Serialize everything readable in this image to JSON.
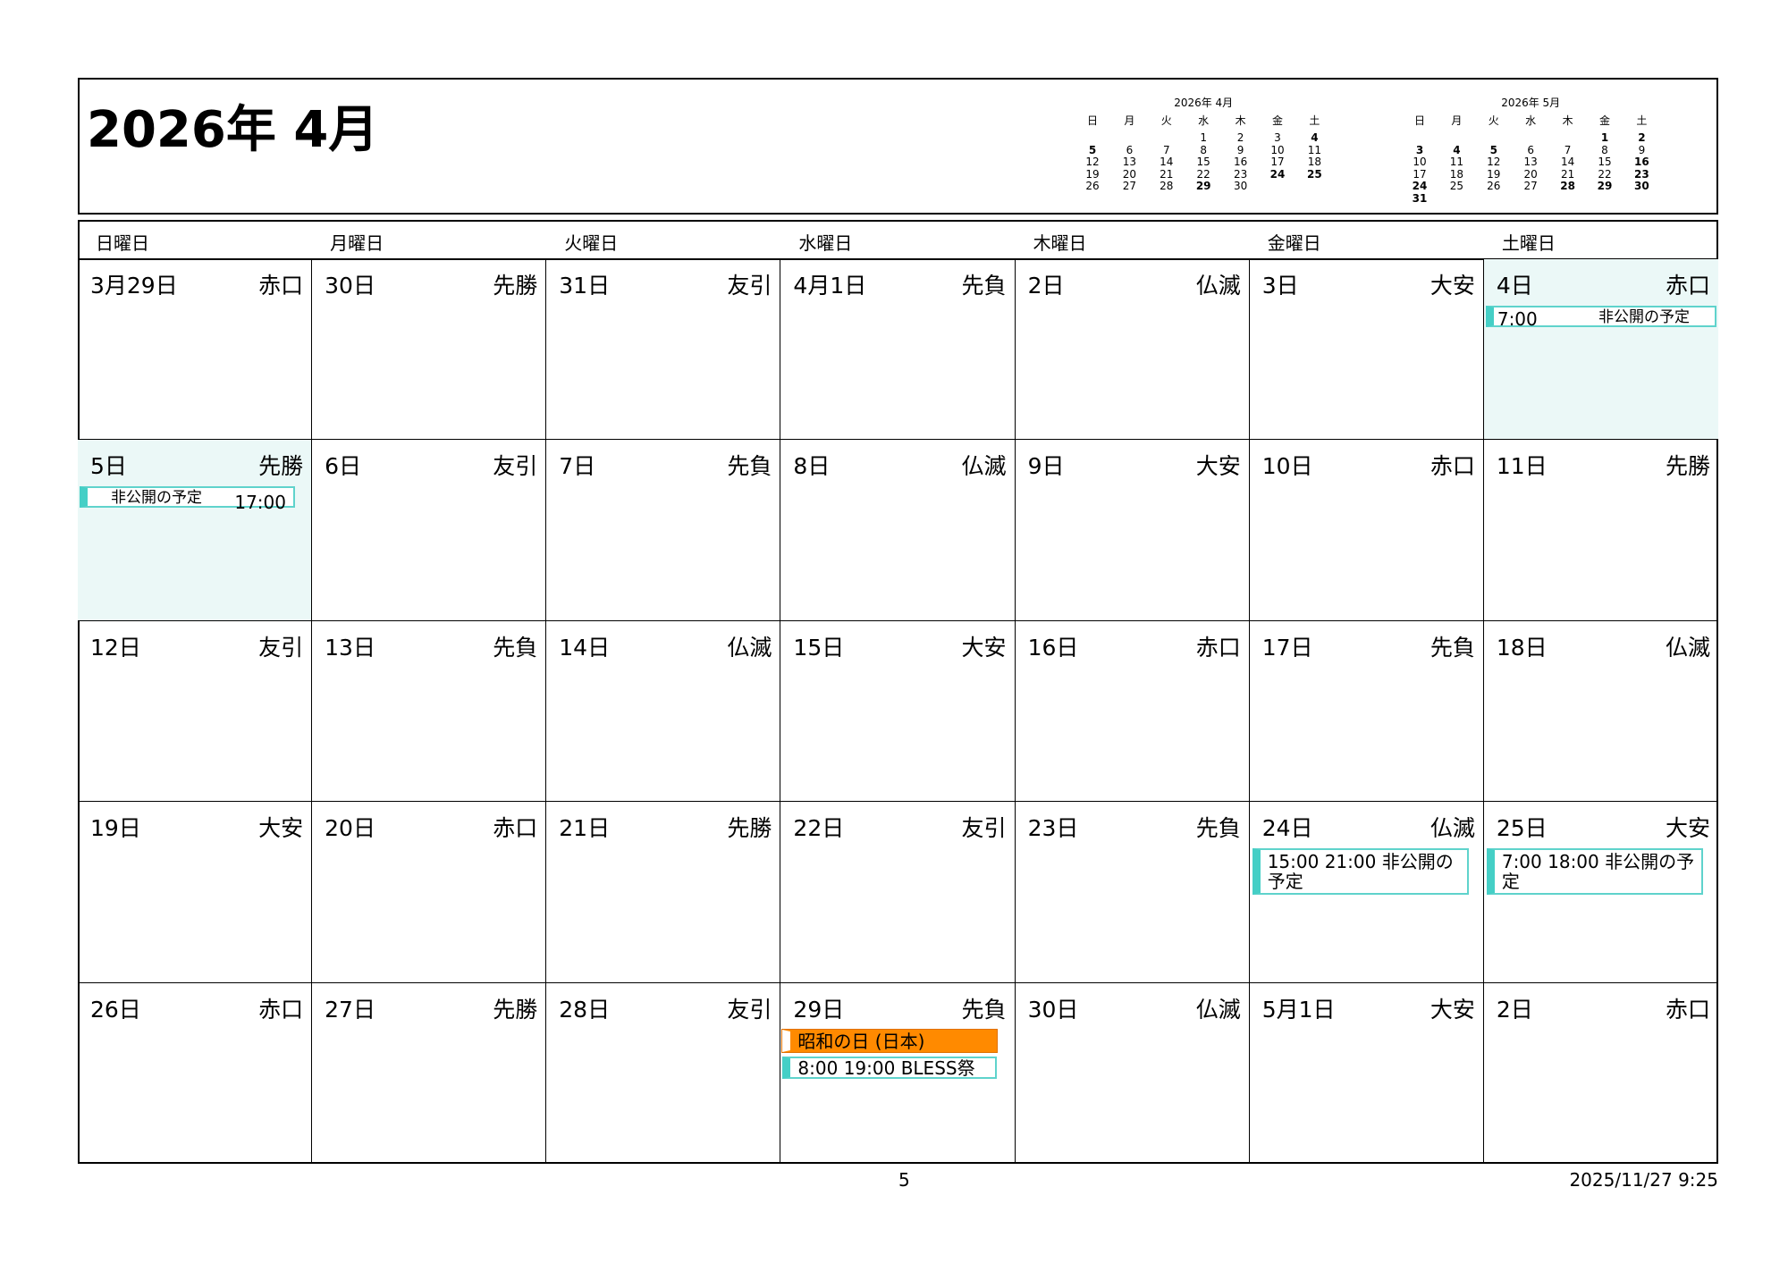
{
  "header": {
    "title": "2026年 4月",
    "mini_calendars": [
      {
        "title": "2026年 4月",
        "weekdays": [
          "日",
          "月",
          "火",
          "水",
          "木",
          "金",
          "土"
        ],
        "weeks": [
          [
            null,
            null,
            null,
            1,
            2,
            3,
            4
          ],
          [
            5,
            6,
            7,
            8,
            9,
            10,
            11
          ],
          [
            12,
            13,
            14,
            15,
            16,
            17,
            18
          ],
          [
            19,
            20,
            21,
            22,
            23,
            24,
            25
          ],
          [
            26,
            27,
            28,
            29,
            30
          ]
        ],
        "bold": [
          4,
          5,
          24,
          25,
          29
        ]
      },
      {
        "title": "2026年 5月",
        "weekdays": [
          "日",
          "月",
          "火",
          "水",
          "木",
          "金",
          "土"
        ],
        "weeks": [
          [
            null,
            null,
            null,
            null,
            null,
            1,
            2
          ],
          [
            3,
            4,
            5,
            6,
            7,
            8,
            9
          ],
          [
            10,
            11,
            12,
            13,
            14,
            15,
            16
          ],
          [
            17,
            18,
            19,
            20,
            21,
            22,
            23
          ],
          [
            24,
            25,
            26,
            27,
            28,
            29,
            30
          ],
          [
            31
          ]
        ],
        "bold": [
          1,
          2,
          3,
          4,
          5,
          16,
          23,
          24,
          28,
          29,
          30,
          31
        ]
      }
    ]
  },
  "weekdays": [
    "日曜日",
    "月曜日",
    "火曜日",
    "水曜日",
    "木曜日",
    "金曜日",
    "土曜日"
  ],
  "weeks": [
    [
      {
        "date": "3月29日",
        "rokuyo": "赤口"
      },
      {
        "date": "30日",
        "rokuyo": "先勝"
      },
      {
        "date": "31日",
        "rokuyo": "友引"
      },
      {
        "date": "4月1日",
        "rokuyo": "先負"
      },
      {
        "date": "2日",
        "rokuyo": "仏滅"
      },
      {
        "date": "3日",
        "rokuyo": "大安"
      },
      {
        "date": "4日",
        "rokuyo": "赤口",
        "highlight": true,
        "events": [
          {
            "kind": "multi-start",
            "time": "7:00",
            "title": "非公開の予定"
          }
        ]
      }
    ],
    [
      {
        "date": "5日",
        "rokuyo": "先勝",
        "highlight": true,
        "events": [
          {
            "kind": "multi-end",
            "title": "非公開の予定",
            "time": "17:00"
          }
        ]
      },
      {
        "date": "6日",
        "rokuyo": "友引"
      },
      {
        "date": "7日",
        "rokuyo": "先負"
      },
      {
        "date": "8日",
        "rokuyo": "仏滅"
      },
      {
        "date": "9日",
        "rokuyo": "大安"
      },
      {
        "date": "10日",
        "rokuyo": "赤口"
      },
      {
        "date": "11日",
        "rokuyo": "先勝"
      }
    ],
    [
      {
        "date": "12日",
        "rokuyo": "友引"
      },
      {
        "date": "13日",
        "rokuyo": "先負"
      },
      {
        "date": "14日",
        "rokuyo": "仏滅"
      },
      {
        "date": "15日",
        "rokuyo": "大安"
      },
      {
        "date": "16日",
        "rokuyo": "赤口"
      },
      {
        "date": "17日",
        "rokuyo": "先負"
      },
      {
        "date": "18日",
        "rokuyo": "仏滅"
      }
    ],
    [
      {
        "date": "19日",
        "rokuyo": "大安"
      },
      {
        "date": "20日",
        "rokuyo": "赤口"
      },
      {
        "date": "21日",
        "rokuyo": "先勝"
      },
      {
        "date": "22日",
        "rokuyo": "友引"
      },
      {
        "date": "23日",
        "rokuyo": "先負"
      },
      {
        "date": "24日",
        "rokuyo": "仏滅",
        "events": [
          {
            "kind": "timed",
            "time": "15:00 21:00",
            "title": "非公開の予定"
          }
        ]
      },
      {
        "date": "25日",
        "rokuyo": "大安",
        "events": [
          {
            "kind": "timed",
            "time": "7:00 18:00",
            "title": "非公開の予定"
          }
        ]
      }
    ],
    [
      {
        "date": "26日",
        "rokuyo": "赤口"
      },
      {
        "date": "27日",
        "rokuyo": "先勝"
      },
      {
        "date": "28日",
        "rokuyo": "友引"
      },
      {
        "date": "29日",
        "rokuyo": "先負",
        "events": [
          {
            "kind": "holiday",
            "title": "昭和の日 (日本)"
          },
          {
            "kind": "single",
            "time": "8:00 19:00",
            "title": "BLESS祭"
          }
        ]
      },
      {
        "date": "30日",
        "rokuyo": "仏滅"
      },
      {
        "date": "5月1日",
        "rokuyo": "大安"
      },
      {
        "date": "2日",
        "rokuyo": "赤口"
      }
    ]
  ],
  "footer": {
    "page": "5",
    "printed": "2025/11/27 9:25"
  }
}
